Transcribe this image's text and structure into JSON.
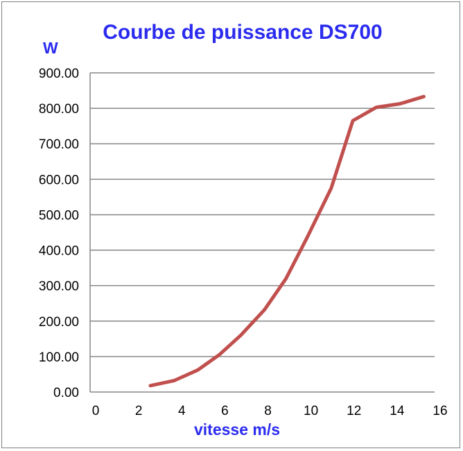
{
  "chart_data": {
    "type": "line",
    "title": "Courbe de puissance DS700",
    "ylabel": "W",
    "xlabel": "vitesse m/s",
    "xlim": [
      0,
      16
    ],
    "ylim": [
      0,
      900
    ],
    "x_ticks": [
      "0",
      "2",
      "4",
      "6",
      "8",
      "10",
      "12",
      "14",
      "16"
    ],
    "y_ticks": [
      "0.00",
      "100.00",
      "200.00",
      "300.00",
      "400.00",
      "500.00",
      "600.00",
      "700.00",
      "800.00",
      "900.00"
    ],
    "grid": "horizontal",
    "legend": "none",
    "series": [
      {
        "color": "#c0504d",
        "points": [
          [
            2.8,
            18
          ],
          [
            3.9,
            32
          ],
          [
            5.0,
            62
          ],
          [
            6.0,
            105
          ],
          [
            7.0,
            160
          ],
          [
            8.1,
            232
          ],
          [
            9.1,
            320
          ],
          [
            10.1,
            438
          ],
          [
            11.2,
            575
          ],
          [
            12.2,
            765
          ],
          [
            13.3,
            803
          ],
          [
            14.4,
            813
          ],
          [
            15.5,
            833
          ]
        ]
      }
    ]
  }
}
